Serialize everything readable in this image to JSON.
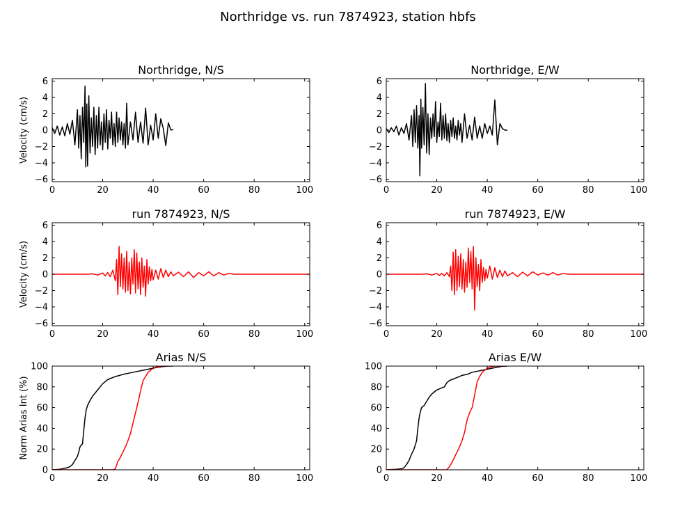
{
  "figure": {
    "title": "Northridge vs. run 7874923, station hbfs"
  },
  "chart_data": [
    {
      "type": "line",
      "title": "Northridge, N/S",
      "ylabel": "Velocity (cm/s)",
      "xlim": [
        0,
        102
      ],
      "ylim": [
        -6.3,
        6.3
      ],
      "xticks": [
        "0",
        "20",
        "40",
        "60",
        "80",
        "100"
      ],
      "yticks": [
        "−6",
        "−4",
        "−2",
        "0",
        "2",
        "4",
        "6"
      ],
      "series": [
        {
          "color": "#000000",
          "x": [
            0,
            1,
            2,
            3,
            4,
            5,
            6,
            7,
            8,
            9,
            10,
            10.5,
            11,
            11.5,
            12,
            12.5,
            13,
            13.3,
            13.7,
            14,
            14.5,
            15,
            15.5,
            16,
            16.5,
            17,
            17.5,
            18,
            18.5,
            19,
            19.5,
            20,
            20.5,
            21,
            21.5,
            22,
            22.5,
            23,
            23.5,
            24,
            24.5,
            25,
            25.5,
            26,
            26.5,
            27,
            27.5,
            28,
            28.5,
            29,
            29.5,
            30,
            31,
            32,
            33,
            34,
            35,
            36,
            37,
            38,
            39,
            40,
            41,
            42,
            43,
            44,
            45,
            46,
            47,
            48
          ],
          "y": [
            0.3,
            -0.4,
            0.5,
            -0.6,
            0.4,
            -0.7,
            0.8,
            -0.5,
            1.2,
            -1.8,
            2.5,
            -2.2,
            1.8,
            -3.5,
            2.8,
            -1.5,
            5.4,
            -4.5,
            3.2,
            -4.4,
            4.2,
            -2.8,
            1.5,
            -2.0,
            2.8,
            -3.0,
            1.8,
            -2.2,
            2.8,
            -1.8,
            1.0,
            -2.4,
            2.0,
            -1.5,
            2.5,
            -2.3,
            1.2,
            -1.0,
            2.2,
            -1.8,
            0.8,
            -2.0,
            2.2,
            -1.5,
            1.5,
            -1.2,
            1.0,
            -1.8,
            0.8,
            -2.2,
            3.3,
            -1.8,
            1.0,
            -1.2,
            2.2,
            -1.5,
            1.0,
            -1.6,
            2.7,
            -1.8,
            0.6,
            -1.2,
            2.0,
            -1.0,
            1.4,
            0.2,
            -1.9,
            0.9,
            0.0,
            0.1
          ]
        }
      ]
    },
    {
      "type": "line",
      "title": "Northridge, E/W",
      "ylabel": "",
      "xlim": [
        0,
        102
      ],
      "ylim": [
        -6.3,
        6.3
      ],
      "xticks": [
        "0",
        "20",
        "40",
        "60",
        "80",
        "100"
      ],
      "yticks": [
        "−6",
        "−4",
        "−2",
        "0",
        "2",
        "4",
        "6"
      ],
      "series": [
        {
          "color": "#000000",
          "x": [
            0,
            1,
            2,
            3,
            4,
            5,
            6,
            7,
            8,
            9,
            10,
            10.5,
            11,
            11.5,
            12,
            12.5,
            13,
            13.3,
            13.7,
            14,
            14.5,
            15,
            15.5,
            16,
            16.5,
            17,
            17.5,
            18,
            18.5,
            19,
            19.5,
            20,
            20.5,
            21,
            21.5,
            22,
            22.5,
            23,
            23.5,
            24,
            24.5,
            25,
            25.5,
            26,
            26.5,
            27,
            27.5,
            28,
            28.5,
            29,
            29.5,
            30,
            31,
            32,
            33,
            34,
            35,
            36,
            37,
            38,
            39,
            40,
            41,
            42,
            43,
            44,
            45,
            46,
            47,
            48
          ],
          "y": [
            0.2,
            -0.3,
            0.3,
            -0.2,
            0.5,
            -0.6,
            0.3,
            -0.4,
            0.8,
            -1.2,
            1.8,
            -2.0,
            2.5,
            -1.5,
            3.0,
            -2.2,
            1.8,
            -5.6,
            3.8,
            -2.2,
            2.8,
            -1.8,
            5.7,
            -2.8,
            2.0,
            -3.0,
            1.5,
            -1.0,
            2.0,
            -0.8,
            3.5,
            -1.5,
            1.0,
            -0.8,
            3.3,
            -1.2,
            1.8,
            -1.0,
            2.0,
            -1.3,
            0.8,
            -1.5,
            1.2,
            -0.8,
            1.5,
            -1.0,
            0.5,
            -1.2,
            1.2,
            -0.6,
            0.8,
            -1.5,
            2.0,
            -1.0,
            0.6,
            -1.2,
            1.6,
            -1.0,
            0.5,
            -1.0,
            0.8,
            -0.4,
            0.5,
            -0.6,
            3.7,
            -1.8,
            0.8,
            0.2,
            0.0,
            0.0
          ]
        }
      ]
    },
    {
      "type": "line",
      "title": "run 7874923, N/S",
      "ylabel": "Velocity (cm/s)",
      "xlim": [
        0,
        102
      ],
      "ylim": [
        -6.3,
        6.3
      ],
      "xticks": [
        "0",
        "20",
        "40",
        "60",
        "80",
        "100"
      ],
      "yticks": [
        "−6",
        "−4",
        "−2",
        "0",
        "2",
        "4",
        "6"
      ],
      "series": [
        {
          "color": "#ff0000",
          "x": [
            0,
            14,
            16,
            18,
            20,
            21,
            22,
            23,
            24,
            25,
            25.5,
            26,
            26.5,
            27,
            27.5,
            28,
            28.5,
            29,
            29.5,
            30,
            30.5,
            31,
            31.5,
            32,
            32.5,
            33,
            33.5,
            34,
            34.5,
            35,
            35.5,
            36,
            36.5,
            37,
            37.5,
            38,
            38.5,
            39,
            39.5,
            40,
            41,
            42,
            43,
            44,
            45,
            46,
            47,
            48,
            50,
            52,
            54,
            56,
            58,
            60,
            62,
            64,
            66,
            68,
            70,
            72,
            76,
            80,
            90,
            102
          ],
          "y": [
            0,
            0,
            0.05,
            -0.1,
            0.15,
            -0.2,
            0.2,
            -0.3,
            0.5,
            -0.8,
            1.8,
            -2.5,
            3.4,
            -1.5,
            2.5,
            -1.8,
            2.0,
            -2.2,
            2.8,
            -2.0,
            1.5,
            -2.4,
            2.0,
            -1.2,
            3.0,
            -2.3,
            2.6,
            -1.8,
            1.5,
            -2.5,
            2.0,
            -1.6,
            1.0,
            -2.7,
            1.8,
            -1.2,
            0.9,
            -0.8,
            0.6,
            -0.7,
            0.5,
            -0.6,
            0.7,
            -0.4,
            0.5,
            -0.3,
            0.3,
            -0.2,
            0.25,
            -0.3,
            0.3,
            -0.4,
            0.2,
            -0.2,
            0.3,
            -0.2,
            0.2,
            -0.1,
            0.1,
            0,
            0,
            0,
            0,
            0
          ]
        }
      ]
    },
    {
      "type": "line",
      "title": "run 7874923, E/W",
      "ylabel": "",
      "xlim": [
        0,
        102
      ],
      "ylim": [
        -6.3,
        6.3
      ],
      "xticks": [
        "0",
        "20",
        "40",
        "60",
        "80",
        "100"
      ],
      "yticks": [
        "−6",
        "−4",
        "−2",
        "0",
        "2",
        "4",
        "6"
      ],
      "series": [
        {
          "color": "#ff0000",
          "x": [
            0,
            14,
            16,
            18,
            20,
            21,
            22,
            23,
            24,
            25,
            25.5,
            26,
            26.5,
            27,
            27.5,
            28,
            28.5,
            29,
            29.5,
            30,
            30.5,
            31,
            31.5,
            32,
            32.5,
            33,
            33.5,
            34,
            34.5,
            35,
            35.5,
            36,
            36.5,
            37,
            37.5,
            38,
            38.5,
            39,
            39.5,
            40,
            41,
            42,
            43,
            44,
            45,
            46,
            47,
            48,
            50,
            52,
            54,
            56,
            58,
            60,
            62,
            64,
            66,
            68,
            70,
            72,
            76,
            80,
            90,
            102
          ],
          "y": [
            0,
            0,
            0.05,
            -0.1,
            0.1,
            -0.15,
            0.1,
            -0.2,
            0.2,
            -0.3,
            1.0,
            -2.0,
            2.7,
            -2.5,
            3.0,
            -2.0,
            2.2,
            -1.5,
            2.5,
            -1.8,
            1.8,
            -2.2,
            1.5,
            -1.6,
            3.2,
            -1.0,
            2.8,
            -1.8,
            3.4,
            -4.4,
            2.0,
            -1.5,
            1.2,
            -2.0,
            1.8,
            -1.0,
            0.8,
            -0.8,
            0.6,
            -0.5,
            1.0,
            -0.6,
            0.8,
            -0.4,
            0.5,
            -0.3,
            0.4,
            -0.2,
            0.2,
            -0.3,
            0.25,
            -0.2,
            0.3,
            -0.1,
            0.15,
            -0.1,
            0.2,
            -0.1,
            0.1,
            0,
            0,
            0,
            0,
            0
          ]
        }
      ]
    },
    {
      "type": "line",
      "title": "Arias N/S",
      "ylabel": "Norm Arias Int (%)",
      "xlim": [
        0,
        102
      ],
      "ylim": [
        0,
        100
      ],
      "xticks": [
        "0",
        "20",
        "40",
        "60",
        "80",
        "100"
      ],
      "yticks": [
        "0",
        "20",
        "40",
        "60",
        "80",
        "100"
      ],
      "series": [
        {
          "color": "#000000",
          "x": [
            0,
            3,
            6,
            7,
            8,
            9,
            10,
            10.5,
            11,
            11.5,
            12,
            12.5,
            13,
            13.5,
            14,
            15,
            16,
            17,
            18,
            19,
            20,
            21,
            22,
            23,
            24,
            25,
            26,
            28,
            30,
            32,
            34,
            36,
            38,
            40,
            42,
            44,
            46,
            48
          ],
          "y": [
            0,
            0.5,
            2,
            3,
            5,
            9,
            13,
            17,
            22,
            24,
            25,
            38,
            50,
            58,
            62,
            67,
            71,
            74,
            77,
            80,
            83,
            85,
            87,
            88,
            89,
            90,
            90.5,
            92,
            93,
            94,
            95,
            96,
            97,
            98,
            99,
            99.6,
            100,
            100
          ]
        },
        {
          "color": "#ff0000",
          "x": [
            0,
            24,
            25,
            26,
            27,
            28,
            29,
            30,
            31,
            32,
            33,
            34,
            35,
            36,
            37,
            38,
            39,
            40,
            41,
            42,
            43,
            44,
            46
          ],
          "y": [
            0,
            0,
            1,
            8,
            12,
            17,
            22,
            28,
            35,
            45,
            55,
            65,
            76,
            86,
            90,
            94,
            96,
            98,
            99,
            99.5,
            100,
            100,
            100
          ]
        }
      ]
    },
    {
      "type": "line",
      "title": "Arias E/W",
      "ylabel": "",
      "xlim": [
        0,
        102
      ],
      "ylim": [
        0,
        100
      ],
      "xticks": [
        "0",
        "20",
        "40",
        "60",
        "80",
        "100"
      ],
      "yticks": [
        "0",
        "20",
        "40",
        "60",
        "80",
        "100"
      ],
      "series": [
        {
          "color": "#000000",
          "x": [
            0,
            4,
            6,
            7,
            8,
            9,
            10,
            11,
            12,
            12.5,
            13,
            13.5,
            14,
            15,
            16,
            17,
            18,
            19,
            20,
            21,
            22,
            23,
            24,
            25,
            26,
            28,
            30,
            32,
            34,
            36,
            38,
            40,
            42,
            44,
            46,
            48
          ],
          "y": [
            0,
            0.5,
            1,
            2,
            5,
            9,
            15,
            20,
            28,
            40,
            50,
            56,
            60,
            62,
            66,
            70,
            73,
            75,
            77,
            78,
            79,
            80,
            84,
            86,
            87,
            89,
            91,
            92,
            94,
            95,
            96,
            97,
            98,
            99,
            99.8,
            100
          ]
        },
        {
          "color": "#ff0000",
          "x": [
            0,
            24,
            25,
            26,
            27,
            28,
            29,
            30,
            31,
            32,
            33,
            34,
            35,
            36,
            37,
            38,
            39,
            40,
            41,
            42,
            43,
            44,
            46
          ],
          "y": [
            0,
            0,
            3,
            7,
            12,
            17,
            22,
            28,
            36,
            48,
            55,
            60,
            72,
            85,
            90,
            94,
            96,
            98,
            99,
            99.5,
            100,
            100,
            100
          ]
        }
      ]
    }
  ]
}
